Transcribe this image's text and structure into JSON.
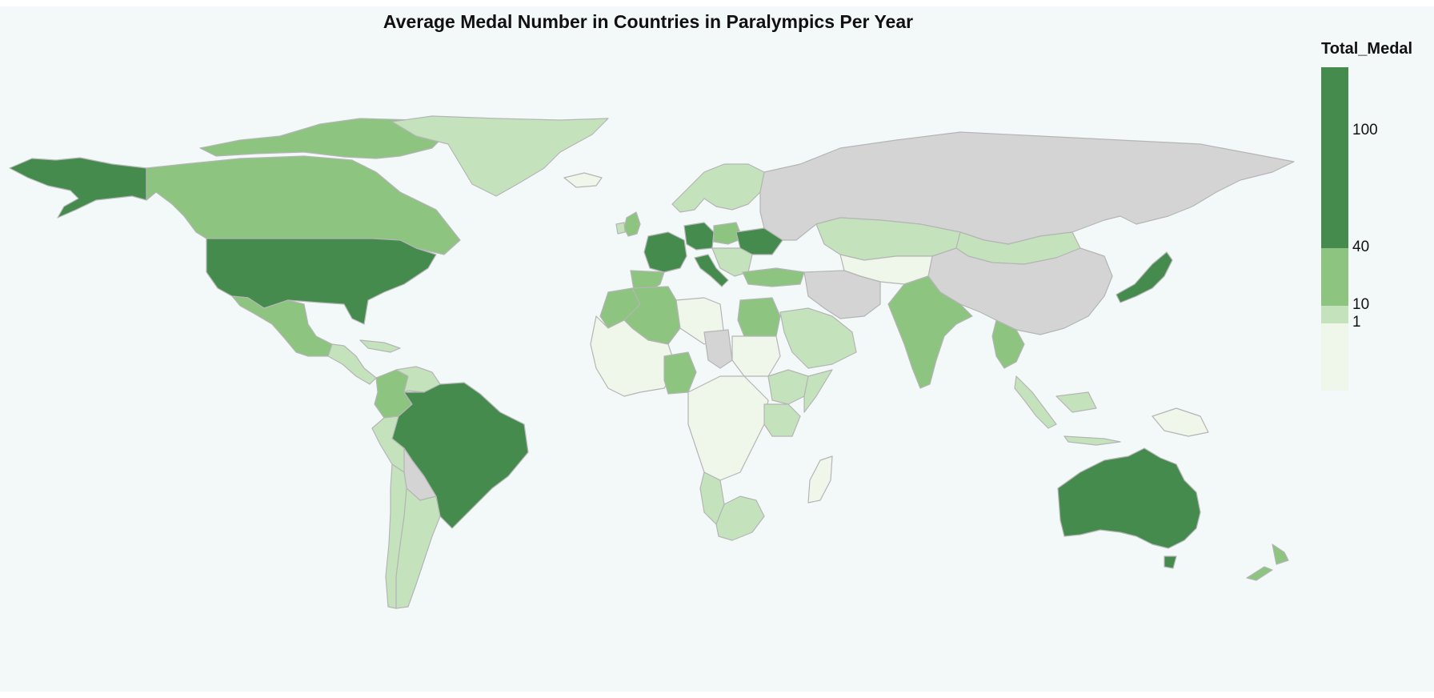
{
  "title": "Average Medal Number in Countries in Paralympics Per Year",
  "legend": {
    "title": "Total_Medal",
    "ticks": [
      "100",
      "40",
      "10",
      "1"
    ],
    "bins": [
      {
        "range": "≥40",
        "color": "#458b4d"
      },
      {
        "range": "10–40",
        "color": "#8cc480"
      },
      {
        "range": "1–10",
        "color": "#c4e3bd"
      },
      {
        "range": "<1",
        "color": "#eff6ea"
      }
    ],
    "no_data_color": "#d4d4d4"
  },
  "regions": [
    {
      "name": "alaska",
      "bin": 0
    },
    {
      "name": "canada",
      "bin": 1
    },
    {
      "name": "greenland",
      "bin": 2
    },
    {
      "name": "iceland",
      "bin": 3
    },
    {
      "name": "usa",
      "bin": 0
    },
    {
      "name": "mexico",
      "bin": 1
    },
    {
      "name": "central-america",
      "bin": 2
    },
    {
      "name": "cuba",
      "bin": 2
    },
    {
      "name": "colombia",
      "bin": 1
    },
    {
      "name": "venezuela",
      "bin": 2
    },
    {
      "name": "brazil",
      "bin": 0
    },
    {
      "name": "peru",
      "bin": 2
    },
    {
      "name": "bolivia",
      "bin": -1
    },
    {
      "name": "argentina",
      "bin": 2
    },
    {
      "name": "chile",
      "bin": 2
    },
    {
      "name": "uk",
      "bin": 1
    },
    {
      "name": "ireland",
      "bin": 2
    },
    {
      "name": "scandinavia",
      "bin": 2
    },
    {
      "name": "france",
      "bin": 0
    },
    {
      "name": "spain",
      "bin": 1
    },
    {
      "name": "germany",
      "bin": 0
    },
    {
      "name": "italy",
      "bin": 0
    },
    {
      "name": "poland",
      "bin": 1
    },
    {
      "name": "ukraine",
      "bin": 0
    },
    {
      "name": "turkey",
      "bin": 1
    },
    {
      "name": "russia",
      "bin": -1
    },
    {
      "name": "kazakhstan",
      "bin": 2
    },
    {
      "name": "mongolia",
      "bin": 2
    },
    {
      "name": "china",
      "bin": -1
    },
    {
      "name": "iran",
      "bin": -1
    },
    {
      "name": "central-asia",
      "bin": 3
    },
    {
      "name": "india",
      "bin": 1
    },
    {
      "name": "thailand",
      "bin": 1
    },
    {
      "name": "japan",
      "bin": 0
    },
    {
      "name": "indonesia",
      "bin": 2
    },
    {
      "name": "papua",
      "bin": 3
    },
    {
      "name": "australia",
      "bin": 0
    },
    {
      "name": "new-zealand",
      "bin": 1
    },
    {
      "name": "morocco",
      "bin": 1
    },
    {
      "name": "algeria",
      "bin": 1
    },
    {
      "name": "libya",
      "bin": 3
    },
    {
      "name": "egypt",
      "bin": 1
    },
    {
      "name": "west-africa",
      "bin": 3
    },
    {
      "name": "nigeria",
      "bin": 1
    },
    {
      "name": "chad",
      "bin": -1
    },
    {
      "name": "sudan",
      "bin": 3
    },
    {
      "name": "saudi-arabia",
      "bin": 2
    },
    {
      "name": "ethiopia",
      "bin": 2
    },
    {
      "name": "central-africa",
      "bin": 3
    },
    {
      "name": "kenya",
      "bin": 2
    },
    {
      "name": "namibia",
      "bin": 2
    },
    {
      "name": "south-africa",
      "bin": 2
    },
    {
      "name": "madagascar",
      "bin": 3
    }
  ]
}
